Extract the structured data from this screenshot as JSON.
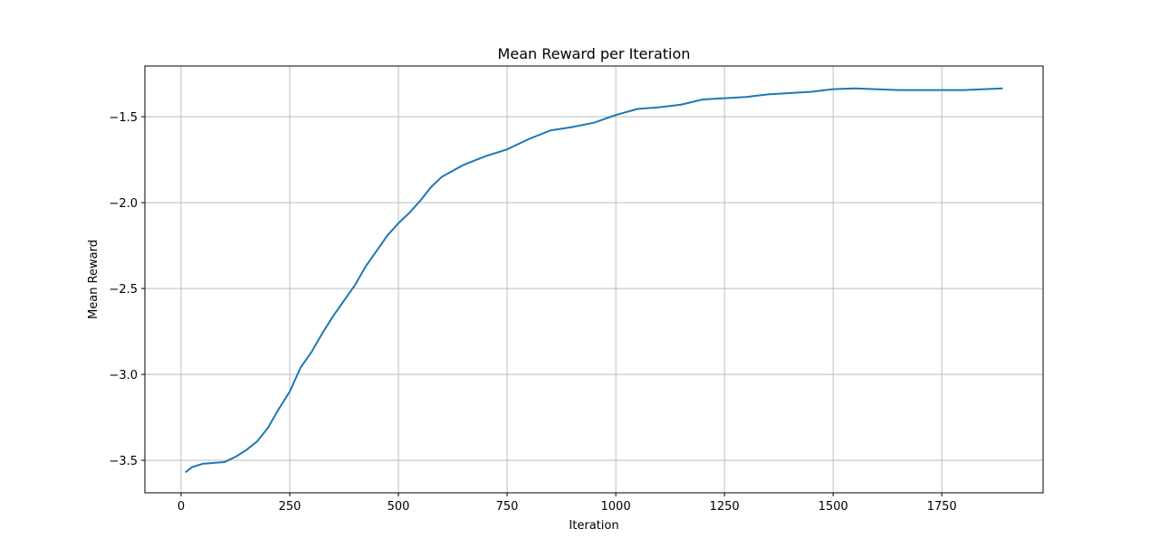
{
  "chart_data": {
    "type": "line",
    "title": "Mean Reward per Iteration",
    "x_label": "Iteration",
    "y_label": "Mean Reward",
    "x": [
      10,
      25,
      50,
      100,
      125,
      150,
      175,
      200,
      225,
      250,
      275,
      300,
      325,
      350,
      375,
      400,
      425,
      450,
      475,
      500,
      525,
      550,
      575,
      600,
      650,
      700,
      750,
      800,
      850,
      900,
      950,
      1000,
      1050,
      1100,
      1150,
      1200,
      1300,
      1350,
      1450,
      1500,
      1550,
      1650,
      1750,
      1800,
      1890
    ],
    "series": [
      {
        "color": "#1f77b4",
        "values": [
          -3.57,
          -3.54,
          -3.52,
          -3.51,
          -3.48,
          -3.44,
          -3.39,
          -3.31,
          -3.2,
          -3.1,
          -2.96,
          -2.87,
          -2.76,
          -2.66,
          -2.57,
          -2.48,
          -2.37,
          -2.28,
          -2.19,
          -2.12,
          -2.06,
          -1.99,
          -1.91,
          -1.85,
          -1.78,
          -1.73,
          -1.69,
          -1.63,
          -1.58,
          -1.56,
          -1.535,
          -1.49,
          -1.455,
          -1.445,
          -1.43,
          -1.4,
          -1.385,
          -1.37,
          -1.355,
          -1.34,
          -1.335,
          -1.345,
          -1.345,
          -1.345,
          -1.335
        ]
      }
    ],
    "xlim": [
      -83.3,
      1983
    ],
    "ylim": [
      -3.689,
      -1.205
    ],
    "xticks": [
      0,
      250,
      500,
      750,
      1000,
      1250,
      1500,
      1750
    ],
    "yticks": [
      {
        "value": -3.5,
        "label": "−3.5"
      },
      {
        "value": -3.0,
        "label": "−3.0"
      },
      {
        "value": -2.5,
        "label": "−2.5"
      },
      {
        "value": -2.0,
        "label": "−2.0"
      },
      {
        "value": -1.5,
        "label": "−1.5"
      }
    ],
    "grid": true
  }
}
